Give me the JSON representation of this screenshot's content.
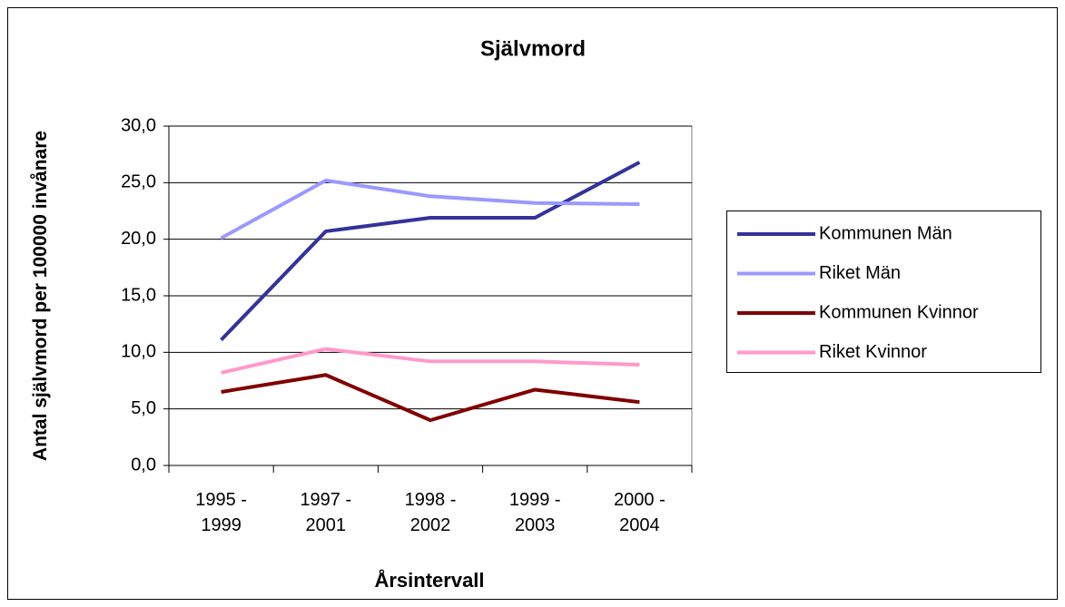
{
  "chart_data": {
    "type": "line",
    "title": "Självmord",
    "x_label": "Årsintervall",
    "y_label": "Antal självmord per 100000 invånare",
    "categories": [
      "1995 - 1999",
      "1997 - 2001",
      "1998 - 2002",
      "1999 - 2003",
      "2000 - 2004"
    ],
    "series": [
      {
        "name": "Kommunen Män",
        "color": "#333399",
        "values": [
          11.1,
          20.7,
          21.9,
          21.9,
          26.8
        ]
      },
      {
        "name": "Riket Män",
        "color": "#9999ff",
        "values": [
          20.1,
          25.2,
          23.8,
          23.2,
          23.1
        ]
      },
      {
        "name": "Kommunen Kvinnor",
        "color": "#800000",
        "values": [
          6.5,
          8.0,
          4.0,
          6.7,
          5.6
        ]
      },
      {
        "name": "Riket Kvinnor",
        "color": "#ff99cc",
        "values": [
          8.2,
          10.3,
          9.2,
          9.2,
          8.9
        ]
      }
    ],
    "ylim": [
      0,
      30
    ],
    "yticks": [
      {
        "value": 0,
        "label": "0,0"
      },
      {
        "value": 5,
        "label": "5,0"
      },
      {
        "value": 10,
        "label": "10,0"
      },
      {
        "value": 15,
        "label": "15,0"
      },
      {
        "value": 20,
        "label": "20,0"
      },
      {
        "value": 25,
        "label": "25,0"
      },
      {
        "value": 30,
        "label": "30,0"
      }
    ],
    "grid": true,
    "legend": "right"
  }
}
